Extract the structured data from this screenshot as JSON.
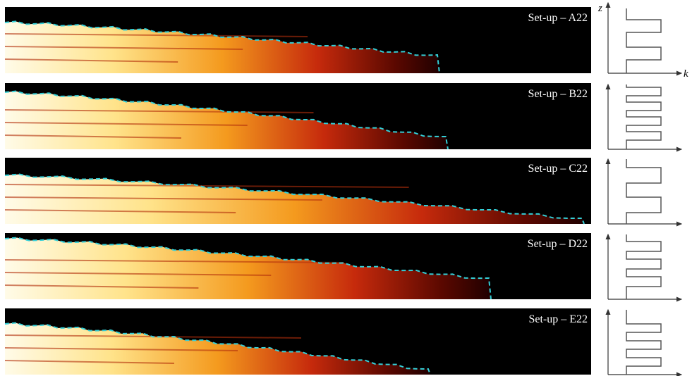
{
  "panels": [
    {
      "label": "Set-up – A22"
    },
    {
      "label": "Set-up – B22"
    },
    {
      "label": "Set-up – C22"
    },
    {
      "label": "Set-up – D22"
    },
    {
      "label": "Set-up – E22"
    }
  ],
  "axes": {
    "z": "z",
    "k": "k"
  }
}
